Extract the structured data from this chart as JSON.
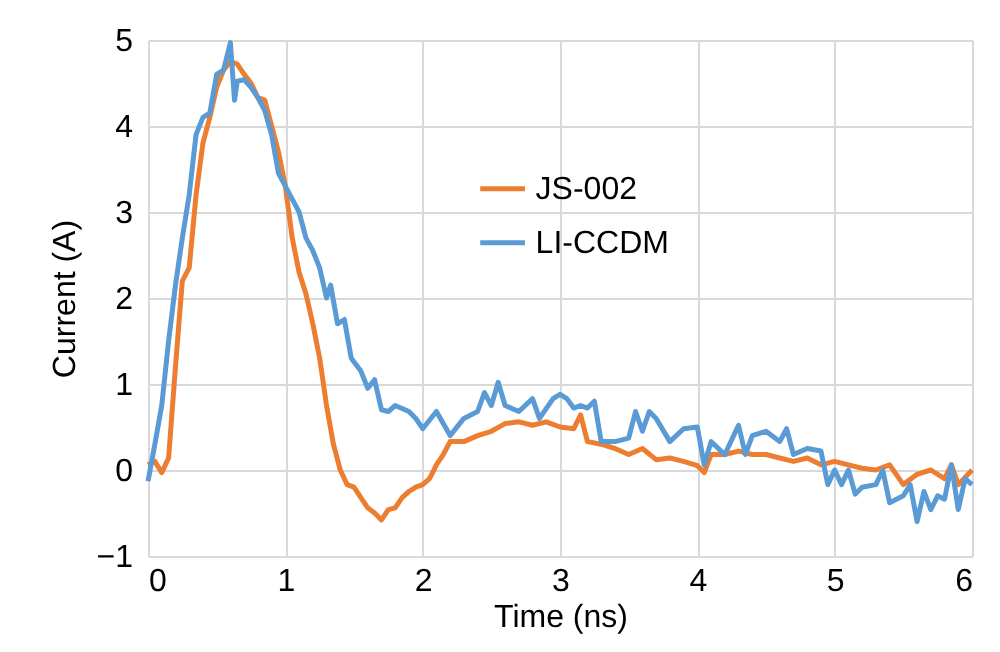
{
  "chart_data": {
    "type": "line",
    "xlabel": "Time (ns)",
    "ylabel": "Current (A)",
    "xlim": [
      0,
      6
    ],
    "xticks": [
      0,
      1,
      2,
      3,
      4,
      5,
      6
    ],
    "ylim": [
      -1,
      5
    ],
    "yticks": [
      -1,
      0,
      1,
      2,
      3,
      4,
      5
    ],
    "grid": true,
    "legend": "right",
    "marker": "none",
    "line_style": "solid",
    "series": [
      {
        "name": "JS-002",
        "color": "#ed7d31",
        "x": [
          0,
          0.05,
          0.1,
          0.15,
          0.2,
          0.25,
          0.3,
          0.35,
          0.4,
          0.45,
          0.5,
          0.55,
          0.6,
          0.65,
          0.7,
          0.75,
          0.8,
          0.85,
          0.9,
          0.95,
          1.0,
          1.05,
          1.1,
          1.15,
          1.2,
          1.25,
          1.3,
          1.35,
          1.4,
          1.45,
          1.5,
          1.55,
          1.6,
          1.65,
          1.7,
          1.75,
          1.8,
          1.85,
          1.9,
          1.95,
          2.0,
          2.05,
          2.1,
          2.15,
          2.2,
          2.3,
          2.4,
          2.5,
          2.6,
          2.7,
          2.8,
          2.9,
          3.0,
          3.1,
          3.15,
          3.2,
          3.3,
          3.4,
          3.5,
          3.6,
          3.7,
          3.8,
          3.9,
          4.0,
          4.05,
          4.1,
          4.2,
          4.3,
          4.4,
          4.5,
          4.6,
          4.7,
          4.8,
          4.9,
          5.0,
          5.1,
          5.2,
          5.3,
          5.4,
          5.5,
          5.6,
          5.7,
          5.8,
          5.85,
          5.9,
          6.0
        ],
        "values": [
          0.06,
          0.1,
          -0.03,
          0.14,
          1.2,
          2.2,
          2.35,
          3.2,
          3.8,
          4.1,
          4.45,
          4.65,
          4.75,
          4.72,
          4.6,
          4.5,
          4.33,
          4.3,
          4.0,
          3.7,
          3.3,
          2.7,
          2.3,
          2.05,
          1.7,
          1.3,
          0.75,
          0.3,
          0,
          -0.17,
          -0.2,
          -0.32,
          -0.44,
          -0.5,
          -0.58,
          -0.46,
          -0.44,
          -0.32,
          -0.25,
          -0.2,
          -0.17,
          -0.1,
          0.06,
          0.18,
          0.33,
          0.33,
          0.4,
          0.45,
          0.54,
          0.56,
          0.52,
          0.56,
          0.5,
          0.48,
          0.64,
          0.33,
          0.3,
          0.25,
          0.18,
          0.25,
          0.12,
          0.14,
          0.1,
          0.05,
          -0.03,
          0.18,
          0.18,
          0.22,
          0.18,
          0.18,
          0.14,
          0.1,
          0.14,
          0.06,
          0.1,
          0.06,
          0.02,
          0,
          0.06,
          -0.17,
          -0.05,
          0,
          -0.1,
          0.06,
          -0.17,
          0
        ]
      },
      {
        "name": "LI-CCDM",
        "color": "#5b9bd5",
        "x": [
          0,
          0.05,
          0.1,
          0.15,
          0.2,
          0.25,
          0.3,
          0.35,
          0.4,
          0.45,
          0.5,
          0.55,
          0.6,
          0.63,
          0.65,
          0.7,
          0.75,
          0.8,
          0.85,
          0.9,
          0.95,
          1.0,
          1.05,
          1.1,
          1.15,
          1.2,
          1.25,
          1.3,
          1.33,
          1.38,
          1.43,
          1.48,
          1.55,
          1.6,
          1.65,
          1.7,
          1.75,
          1.8,
          1.9,
          1.95,
          2.0,
          2.1,
          2.2,
          2.3,
          2.4,
          2.45,
          2.5,
          2.55,
          2.6,
          2.7,
          2.8,
          2.85,
          2.95,
          3.0,
          3.05,
          3.1,
          3.15,
          3.2,
          3.25,
          3.3,
          3.4,
          3.5,
          3.55,
          3.6,
          3.65,
          3.7,
          3.8,
          3.9,
          4.0,
          4.05,
          4.1,
          4.2,
          4.3,
          4.35,
          4.4,
          4.5,
          4.6,
          4.65,
          4.7,
          4.8,
          4.9,
          4.95,
          5.0,
          5.05,
          5.1,
          5.15,
          5.2,
          5.3,
          5.35,
          5.4,
          5.5,
          5.55,
          5.6,
          5.65,
          5.7,
          5.75,
          5.8,
          5.85,
          5.9,
          5.95,
          6.0
        ],
        "values": [
          -0.13,
          0.3,
          0.75,
          1.5,
          2.15,
          2.7,
          3.2,
          3.9,
          4.1,
          4.15,
          4.6,
          4.65,
          4.97,
          4.3,
          4.52,
          4.54,
          4.45,
          4.33,
          4.18,
          3.9,
          3.45,
          3.3,
          3.15,
          3.0,
          2.7,
          2.55,
          2.35,
          2.0,
          2.15,
          1.7,
          1.75,
          1.3,
          1.15,
          0.95,
          1.05,
          0.7,
          0.68,
          0.75,
          0.68,
          0.6,
          0.48,
          0.68,
          0.4,
          0.6,
          0.68,
          0.9,
          0.75,
          1.02,
          0.75,
          0.68,
          0.83,
          0.6,
          0.83,
          0.88,
          0.83,
          0.72,
          0.75,
          0.72,
          0.8,
          0.33,
          0.33,
          0.37,
          0.68,
          0.45,
          0.68,
          0.6,
          0.33,
          0.48,
          0.5,
          0.06,
          0.33,
          0.18,
          0.52,
          0.18,
          0.4,
          0.45,
          0.33,
          0.48,
          0.18,
          0.25,
          0.22,
          -0.17,
          0,
          -0.17,
          0,
          -0.28,
          -0.2,
          -0.17,
          0,
          -0.38,
          -0.3,
          -0.17,
          -0.6,
          -0.25,
          -0.46,
          -0.3,
          -0.34,
          0.06,
          -0.46,
          -0.1,
          -0.17
        ]
      }
    ]
  }
}
